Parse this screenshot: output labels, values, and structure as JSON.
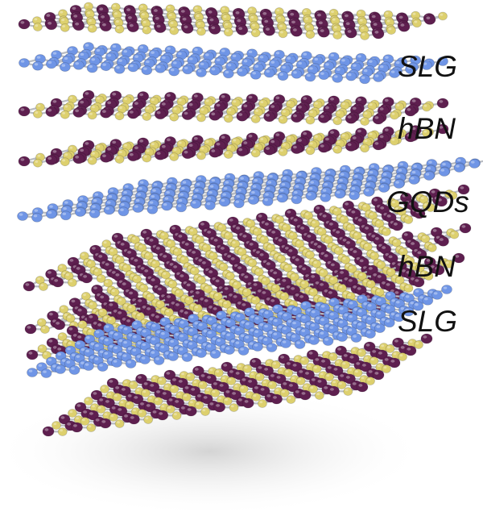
{
  "labels": {
    "slg_top": "SLG",
    "hbn_upper": "hBN",
    "gqds": "GQDs",
    "hbn_lower": "hBN",
    "slg_bottom": "SLG"
  },
  "colors": {
    "boron": "#5e1f4f",
    "nitrogen": "#ddd06e",
    "carbon": "#6f95e6",
    "bond": "#b9bcc2",
    "shadow": "#d9d9d9"
  },
  "layers": [
    {
      "material": "hBN"
    },
    {
      "material": "graphene"
    },
    {
      "material": "hBN"
    },
    {
      "material": "hBN"
    },
    {
      "material": "graphene"
    },
    {
      "material": "hBN"
    },
    {
      "material": "hBN"
    },
    {
      "material": "hBN"
    },
    {
      "material": "graphene"
    },
    {
      "material": "hBN"
    }
  ]
}
